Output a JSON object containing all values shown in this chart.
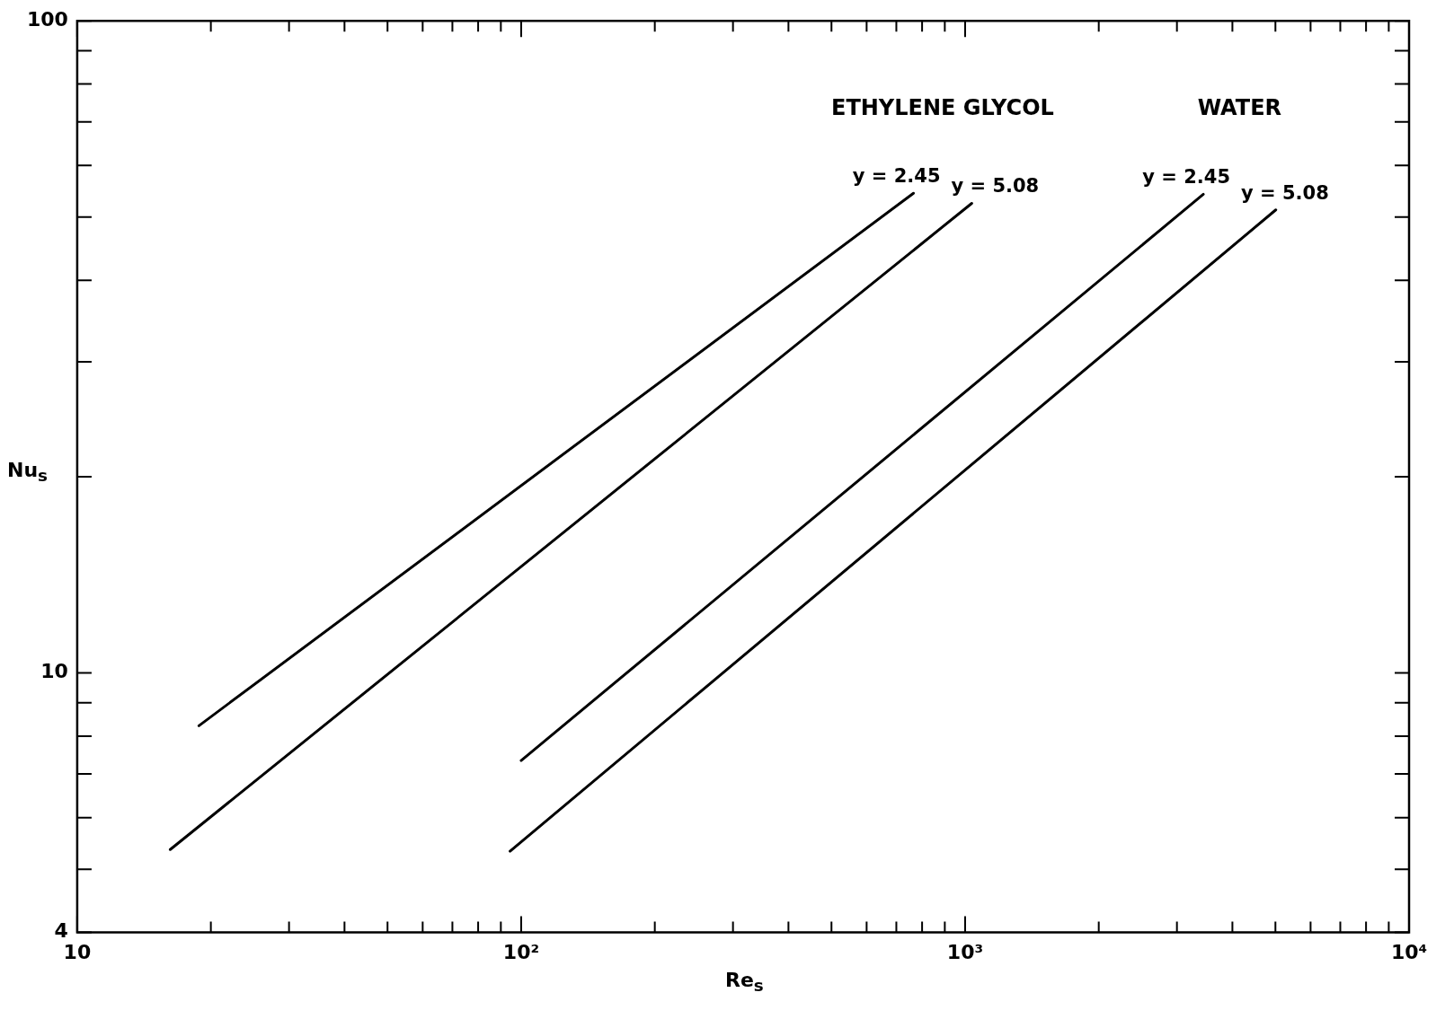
{
  "chart_data": {
    "type": "line",
    "xlabel": "Re$_{s}$",
    "ylabel": "Nu$_{s}$",
    "log": "xy",
    "grid": false,
    "legend": false,
    "marker": "none",
    "line_style": "solid",
    "xlim": [
      10,
      10000
    ],
    "ylim": [
      4,
      100
    ],
    "xticks": [
      {
        "value": 10,
        "label": "10"
      },
      {
        "value": 20,
        "label": null
      },
      {
        "value": 30,
        "label": null
      },
      {
        "value": 40,
        "label": null
      },
      {
        "value": 50,
        "label": null
      },
      {
        "value": 60,
        "label": null
      },
      {
        "value": 70,
        "label": null
      },
      {
        "value": 80,
        "label": null
      },
      {
        "value": 90,
        "label": null
      },
      {
        "value": 100,
        "label": "10²"
      },
      {
        "value": 200,
        "label": null
      },
      {
        "value": 300,
        "label": null
      },
      {
        "value": 400,
        "label": null
      },
      {
        "value": 500,
        "label": null
      },
      {
        "value": 600,
        "label": null
      },
      {
        "value": 700,
        "label": null
      },
      {
        "value": 800,
        "label": null
      },
      {
        "value": 900,
        "label": null
      },
      {
        "value": 1000,
        "label": "10³"
      },
      {
        "value": 2000,
        "label": null
      },
      {
        "value": 3000,
        "label": null
      },
      {
        "value": 4000,
        "label": null
      },
      {
        "value": 5000,
        "label": null
      },
      {
        "value": 6000,
        "label": null
      },
      {
        "value": 7000,
        "label": null
      },
      {
        "value": 8000,
        "label": null
      },
      {
        "value": 9000,
        "label": null
      },
      {
        "value": 10000,
        "label": "10⁴"
      }
    ],
    "yticks": [
      4,
      {
        "value": 5,
        "label": null
      },
      {
        "value": 6,
        "label": null
      },
      {
        "value": 7,
        "label": null
      },
      {
        "value": 8,
        "label": null
      },
      {
        "value": 9,
        "label": null
      },
      10,
      {
        "value": 20,
        "label": null
      },
      {
        "value": 30,
        "label": null
      },
      {
        "value": 40,
        "label": null
      },
      {
        "value": 50,
        "label": null
      },
      {
        "value": 60,
        "label": null
      },
      {
        "value": 70,
        "label": null
      },
      {
        "value": 80,
        "label": null
      },
      {
        "value": 90,
        "label": null
      },
      100
    ],
    "series": [
      {
        "name": "y = 2.45",
        "color": "#000000",
        "x": [
          18.8,
          765
        ],
        "values": [
          8.3,
          54.4
        ]
      },
      {
        "name": "y = 5.08",
        "color": "#000000",
        "x": [
          16.2,
          1035
        ],
        "values": [
          5.36,
          52.5
        ]
      },
      {
        "name": "y = 2.45",
        "color": "#000000",
        "x": [
          100,
          3440
        ],
        "values": [
          7.34,
          54.2
        ]
      },
      {
        "name": "y = 5.08",
        "color": "#000000",
        "x": [
          94.4,
          5010
        ],
        "values": [
          5.33,
          51.3
        ]
      }
    ],
    "annotations": [
      "ETHYLENE GLYCOL",
      "WATER"
    ]
  }
}
